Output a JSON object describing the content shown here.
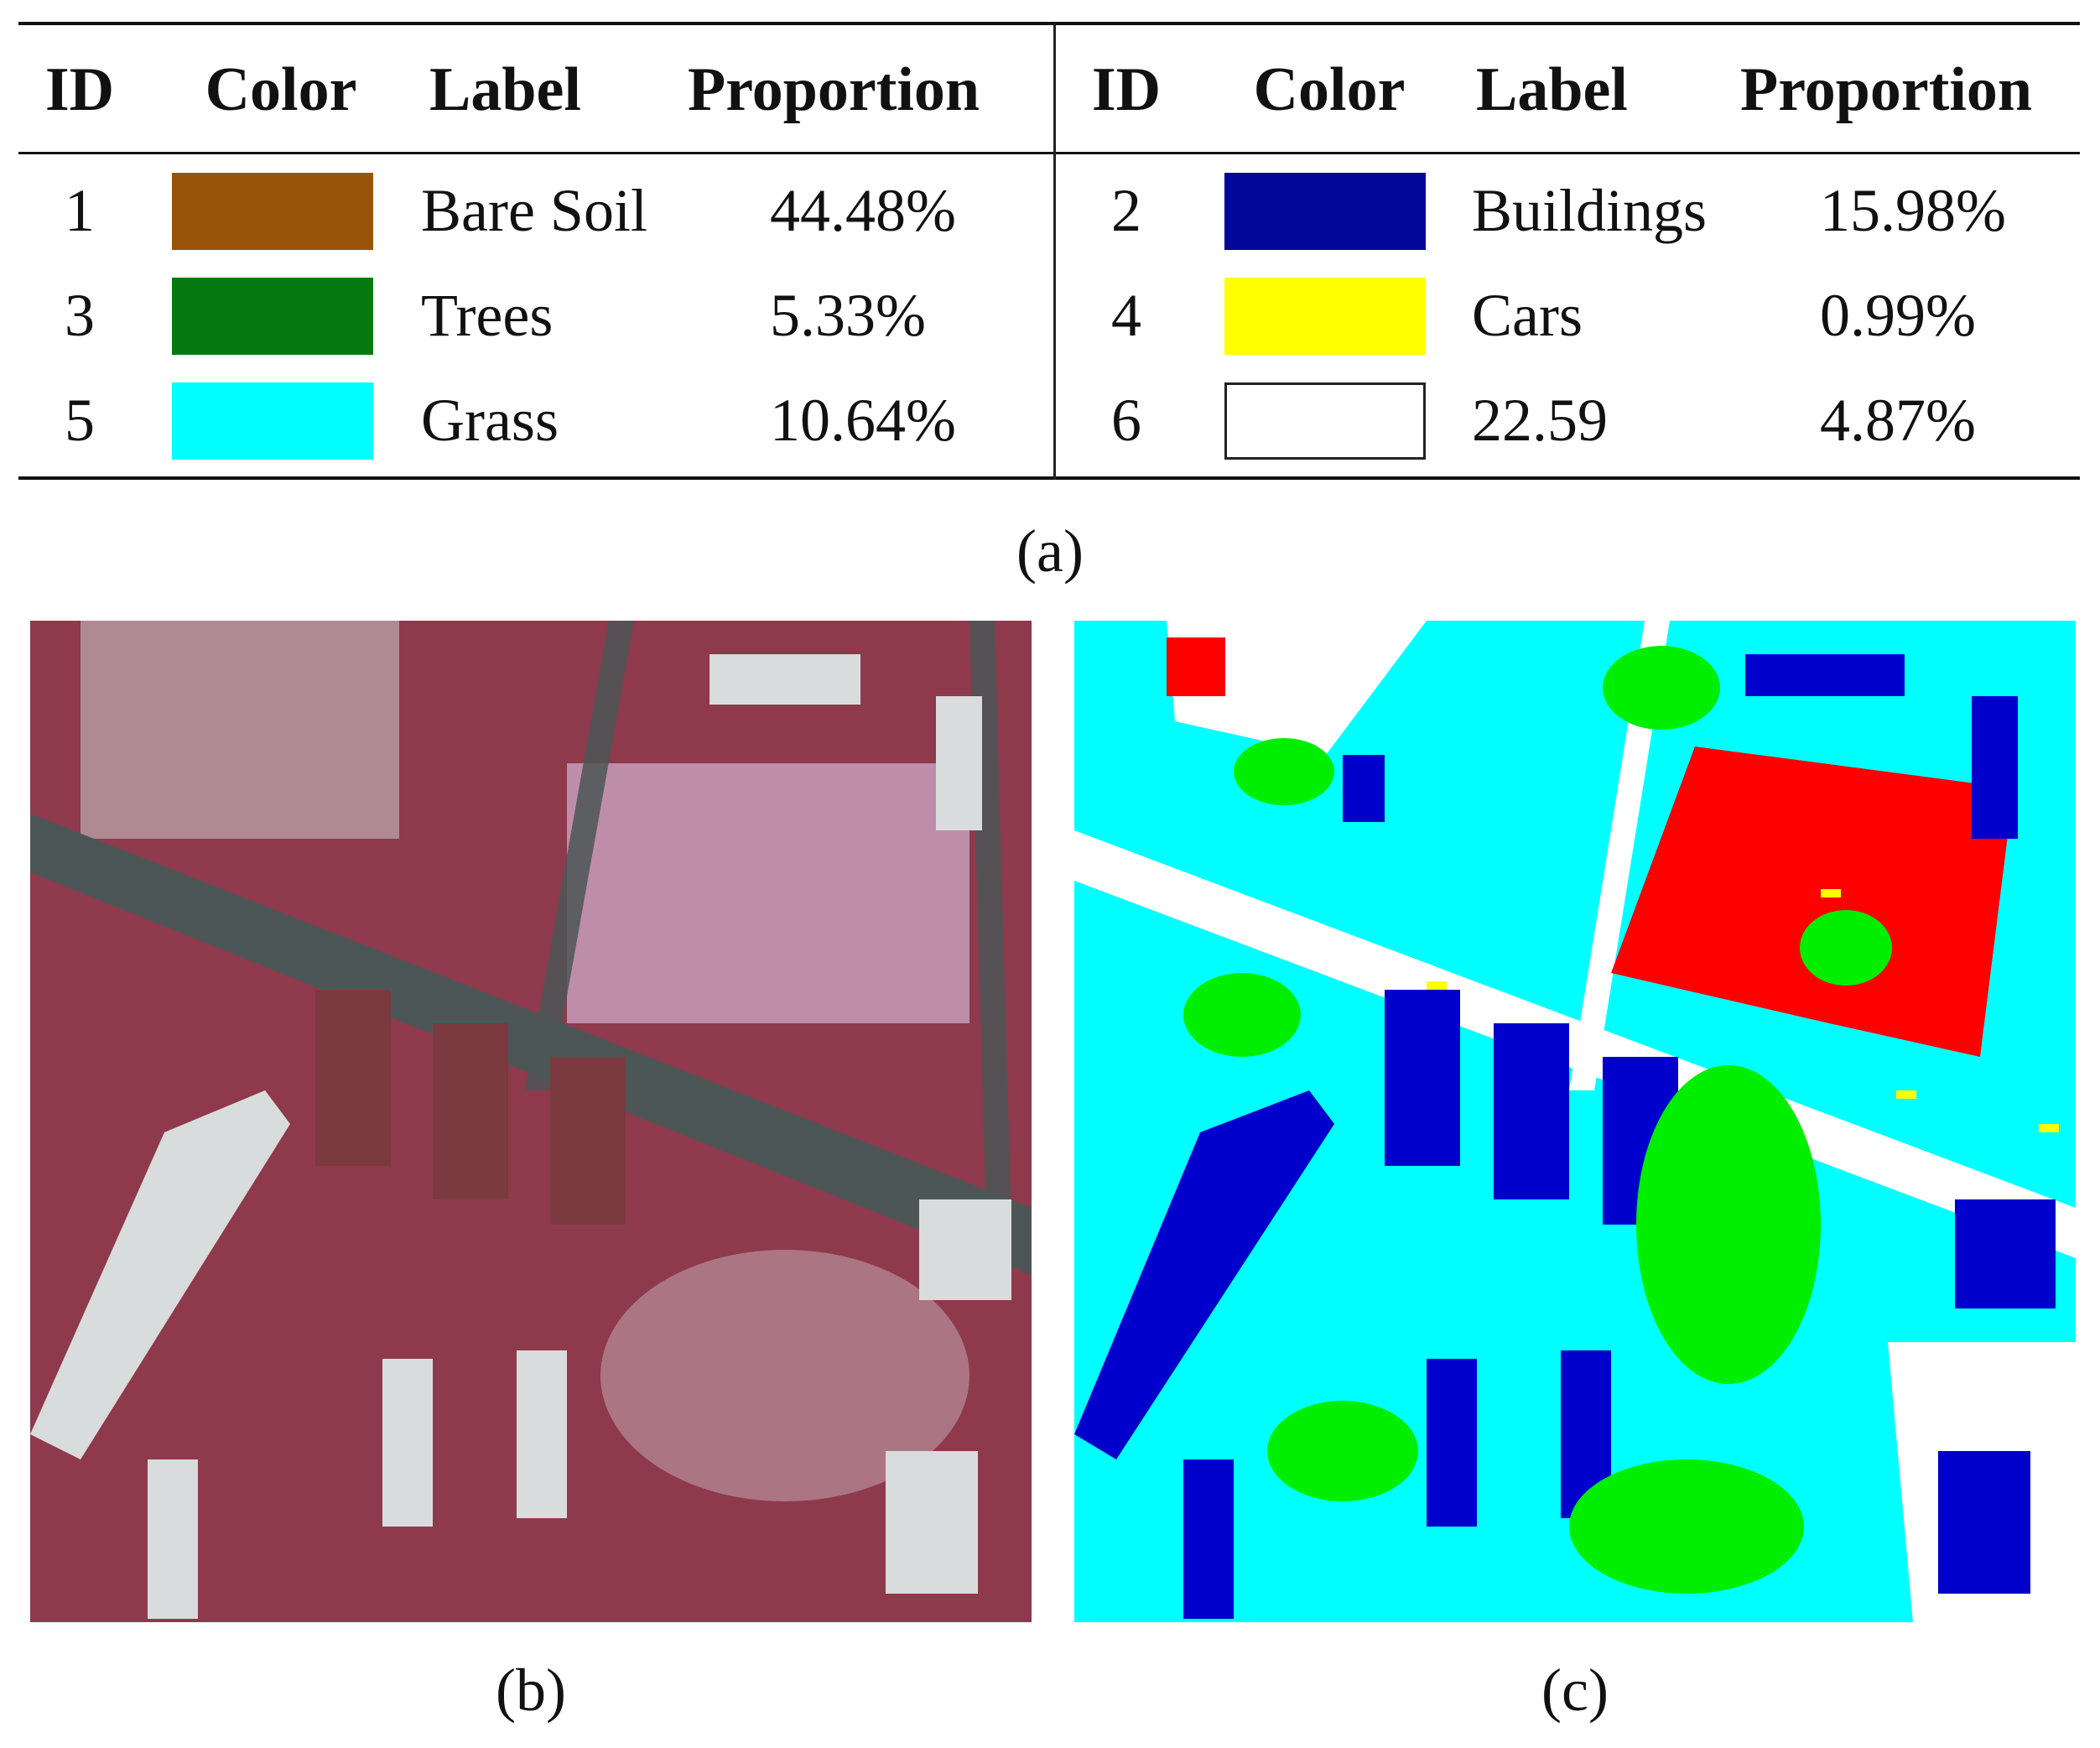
{
  "table": {
    "headers": {
      "id": "ID",
      "color": "Color",
      "label": "Label",
      "proportion": "Proportion"
    },
    "left": [
      {
        "id": "1",
        "color": "#9a5409",
        "label": "Bare Soil",
        "proportion": "44.48%"
      },
      {
        "id": "3",
        "color": "#067a10",
        "label": "Trees",
        "proportion": "5.33%"
      },
      {
        "id": "5",
        "color": "#00ffff",
        "label": "Grass",
        "proportion": "10.64%"
      }
    ],
    "right": [
      {
        "id": "2",
        "color": "#04089a",
        "label": "Buildings",
        "proportion": "15.98%"
      },
      {
        "id": "4",
        "color": "#ffff00",
        "label": "Cars",
        "proportion": "0.99%"
      },
      {
        "id": "6",
        "color": "#ffffff",
        "label": "22.59",
        "proportion": "4.87%"
      }
    ]
  },
  "captions": {
    "a": "(a)",
    "b": "(b)",
    "c": "(c)"
  },
  "colors": {
    "ir_background": "#8e3a4c",
    "ir_road": "#4c5656",
    "ir_roof": "#d8dcdc",
    "map_grass": "#00ffff",
    "map_trees": "#00ee00",
    "map_buildings": "#0000cc",
    "map_clutter": "#ff0000",
    "map_cars": "#ffff00",
    "map_surfaces": "#ffffff"
  }
}
